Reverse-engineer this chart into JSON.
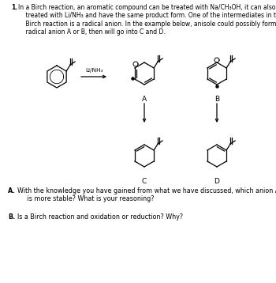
{
  "title_number": "1.",
  "intro_text": "In a Birch reaction, an aromatic compound can be treated with Na/CH₃OH, it can also be\n    treated with Li/NH₃ and have the same product form. One of the intermediates in the\n    Birch reaction is a radical anion. In the example below, anisole could possibly form a\n    radical anion A or B, then will go into C and D.",
  "reagent_label": "Li/NH₃",
  "label_A": "A",
  "label_B": "B",
  "label_C": "C",
  "label_D": "D",
  "question_A_letter": "A.",
  "question_A_text": "With the knowledge you have gained from what we have discussed, which anion A or B\n     is more stable? What is your reasoning?",
  "question_B_letter": "B.",
  "question_B_text": "Is a Birch reaction and oxidation or reduction? Why?",
  "bg_color": "#ffffff",
  "text_color": "#000000",
  "font_size_intro": 5.5,
  "font_size_label": 6.5,
  "font_size_reagent": 5.2,
  "font_size_question": 5.8
}
